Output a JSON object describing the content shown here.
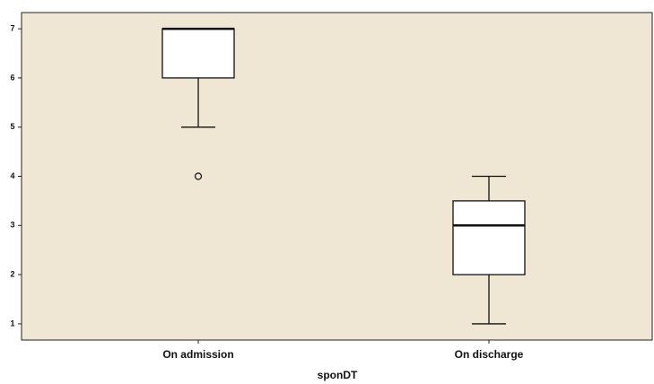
{
  "chart_data": {
    "type": "box",
    "x_label": "sponDT",
    "categories": [
      "On admission",
      "On discharge"
    ],
    "boxes": [
      {
        "min": 5,
        "q1": 6,
        "median": 7,
        "q3": 7,
        "max": 7,
        "outliers": [
          4
        ]
      },
      {
        "min": 1,
        "q1": 2,
        "median": 3,
        "q3": 3.5,
        "max": 4,
        "outliers": []
      }
    ],
    "color": "#ffffff",
    "background": "#efe6d3",
    "ylim": [
      0.67,
      7.33
    ],
    "yticks": [
      1,
      2,
      3,
      4,
      5,
      6,
      7
    ]
  }
}
